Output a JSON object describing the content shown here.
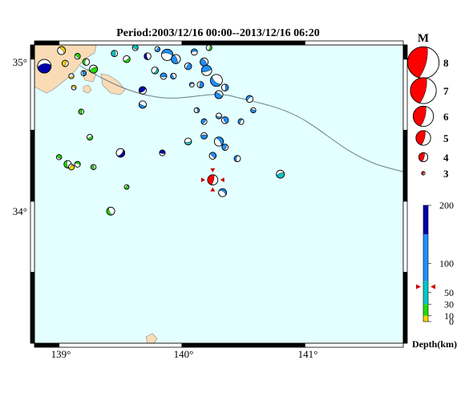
{
  "title": "Period:2003/12/16 00:00--2013/12/16 06:20",
  "map": {
    "lon_min": 138.8,
    "lon_max": 141.8,
    "lat_min": 33.0,
    "lat_max": 35.1,
    "lon_ticks": [
      "139°",
      "140°",
      "141°"
    ],
    "lat_ticks": [
      "35°",
      "34°"
    ],
    "sea_color": "#e4ffff",
    "land_color": "#f9dcb6"
  },
  "magnitude_legend": {
    "title": "M",
    "items": [
      {
        "label": "8",
        "mag": 8
      },
      {
        "label": "7",
        "mag": 7
      },
      {
        "label": "6",
        "mag": 6
      },
      {
        "label": "5",
        "mag": 5
      },
      {
        "label": "4",
        "mag": 4
      },
      {
        "label": "3",
        "mag": 3
      }
    ],
    "color": "#ff0000"
  },
  "depth_legend": {
    "title": "Depth(km)",
    "ticks": [
      "200",
      "100",
      "50",
      "30",
      "10",
      "0"
    ],
    "bands": [
      {
        "from": 0,
        "to": 10,
        "color": "#ffd400"
      },
      {
        "from": 10,
        "to": 30,
        "color": "#22dd00"
      },
      {
        "from": 30,
        "to": 70,
        "color": "#00c8c8"
      },
      {
        "from": 70,
        "to": 150,
        "color": "#1e90ff"
      },
      {
        "from": 150,
        "to": 200,
        "color": "#0000aa"
      }
    ],
    "marker_depth": 60
  },
  "latest_event": {
    "lon": 140.25,
    "lat": 34.15,
    "mag": 4.2,
    "depth": 60
  },
  "events": [
    {
      "lon": 138.88,
      "lat": 34.95,
      "mag": 4.8,
      "color": "#0000aa"
    },
    {
      "lon": 139.02,
      "lat": 35.06,
      "mag": 3.8,
      "color": "#ffd400"
    },
    {
      "lon": 139.05,
      "lat": 34.97,
      "mag": 3.5,
      "color": "#ffd400"
    },
    {
      "lon": 139.1,
      "lat": 34.88,
      "mag": 3.3,
      "color": "#ffd400"
    },
    {
      "lon": 139.15,
      "lat": 35.02,
      "mag": 3.4,
      "color": "#22dd00"
    },
    {
      "lon": 139.22,
      "lat": 34.98,
      "mag": 3.6,
      "color": "#22dd00"
    },
    {
      "lon": 139.28,
      "lat": 34.93,
      "mag": 3.8,
      "color": "#22dd00"
    },
    {
      "lon": 139.12,
      "lat": 34.8,
      "mag": 3.2,
      "color": "#ffd400"
    },
    {
      "lon": 139.45,
      "lat": 35.04,
      "mag": 3.5,
      "color": "#00c8c8"
    },
    {
      "lon": 139.55,
      "lat": 35.0,
      "mag": 3.6,
      "color": "#22dd00"
    },
    {
      "lon": 139.62,
      "lat": 35.08,
      "mag": 3.4,
      "color": "#00c8c8"
    },
    {
      "lon": 139.72,
      "lat": 35.02,
      "mag": 3.6,
      "color": "#0000aa"
    },
    {
      "lon": 139.8,
      "lat": 35.07,
      "mag": 3.3,
      "color": "#1e90ff"
    },
    {
      "lon": 139.88,
      "lat": 35.03,
      "mag": 4.4,
      "color": "#1e90ff"
    },
    {
      "lon": 139.95,
      "lat": 35.0,
      "mag": 4.0,
      "color": "#1e90ff"
    },
    {
      "lon": 139.78,
      "lat": 34.92,
      "mag": 3.6,
      "color": "#00c8c8"
    },
    {
      "lon": 139.85,
      "lat": 34.88,
      "mag": 3.5,
      "color": "#1e90ff"
    },
    {
      "lon": 139.93,
      "lat": 34.88,
      "mag": 3.4,
      "color": "#1e90ff"
    },
    {
      "lon": 140.05,
      "lat": 34.95,
      "mag": 3.6,
      "color": "#1e90ff"
    },
    {
      "lon": 140.1,
      "lat": 35.05,
      "mag": 3.5,
      "color": "#1e90ff"
    },
    {
      "lon": 140.18,
      "lat": 34.98,
      "mag": 3.8,
      "color": "#1e90ff"
    },
    {
      "lon": 140.22,
      "lat": 35.08,
      "mag": 3.4,
      "color": "#22dd00"
    },
    {
      "lon": 140.2,
      "lat": 34.92,
      "mag": 4.2,
      "color": "#1e90ff"
    },
    {
      "lon": 140.28,
      "lat": 34.85,
      "mag": 4.5,
      "color": "#1e90ff"
    },
    {
      "lon": 140.15,
      "lat": 34.82,
      "mag": 3.5,
      "color": "#1e90ff"
    },
    {
      "lon": 140.08,
      "lat": 34.82,
      "mag": 3.2,
      "color": "#1e90ff"
    },
    {
      "lon": 140.3,
      "lat": 34.75,
      "mag": 3.8,
      "color": "#1e90ff"
    },
    {
      "lon": 140.35,
      "lat": 34.8,
      "mag": 3.6,
      "color": "#1e90ff"
    },
    {
      "lon": 139.68,
      "lat": 34.78,
      "mag": 3.7,
      "color": "#0000aa"
    },
    {
      "lon": 139.68,
      "lat": 34.68,
      "mag": 3.7,
      "color": "#1e90ff"
    },
    {
      "lon": 139.2,
      "lat": 34.9,
      "mag": 3.3,
      "color": "#1e90ff"
    },
    {
      "lon": 140.55,
      "lat": 34.72,
      "mag": 3.6,
      "color": "#1e90ff"
    },
    {
      "lon": 140.58,
      "lat": 34.64,
      "mag": 3.3,
      "color": "#1e90ff"
    },
    {
      "lon": 140.12,
      "lat": 34.64,
      "mag": 3.3,
      "color": "#1e90ff"
    },
    {
      "lon": 140.18,
      "lat": 34.56,
      "mag": 3.4,
      "color": "#1e90ff"
    },
    {
      "lon": 140.3,
      "lat": 34.6,
      "mag": 3.4,
      "color": "#1e90ff"
    },
    {
      "lon": 140.35,
      "lat": 34.57,
      "mag": 3.6,
      "color": "#1e90ff"
    },
    {
      "lon": 140.48,
      "lat": 34.56,
      "mag": 3.4,
      "color": "#1e90ff"
    },
    {
      "lon": 140.18,
      "lat": 34.46,
      "mag": 3.5,
      "color": "#1e90ff"
    },
    {
      "lon": 140.3,
      "lat": 34.42,
      "mag": 4.0,
      "color": "#1e90ff"
    },
    {
      "lon": 140.35,
      "lat": 34.38,
      "mag": 3.5,
      "color": "#1e90ff"
    },
    {
      "lon": 140.05,
      "lat": 34.42,
      "mag": 3.6,
      "color": "#00c8c8"
    },
    {
      "lon": 140.25,
      "lat": 34.32,
      "mag": 3.6,
      "color": "#1e90ff"
    },
    {
      "lon": 140.45,
      "lat": 34.3,
      "mag": 3.5,
      "color": "#1e90ff"
    },
    {
      "lon": 140.8,
      "lat": 34.19,
      "mag": 3.8,
      "color": "#00c8c8"
    },
    {
      "lon": 140.33,
      "lat": 34.06,
      "mag": 3.8,
      "color": "#1e90ff"
    },
    {
      "lon": 139.18,
      "lat": 34.63,
      "mag": 3.3,
      "color": "#22dd00"
    },
    {
      "lon": 139.25,
      "lat": 34.45,
      "mag": 3.4,
      "color": "#22dd00"
    },
    {
      "lon": 139.0,
      "lat": 34.31,
      "mag": 3.3,
      "color": "#22dd00"
    },
    {
      "lon": 139.07,
      "lat": 34.26,
      "mag": 3.7,
      "color": "#22dd00"
    },
    {
      "lon": 139.1,
      "lat": 34.24,
      "mag": 3.4,
      "color": "#ffd400"
    },
    {
      "lon": 139.15,
      "lat": 34.26,
      "mag": 3.4,
      "color": "#22dd00"
    },
    {
      "lon": 139.28,
      "lat": 34.24,
      "mag": 3.3,
      "color": "#22dd00"
    },
    {
      "lon": 139.5,
      "lat": 34.34,
      "mag": 3.9,
      "color": "#0000aa"
    },
    {
      "lon": 139.84,
      "lat": 34.34,
      "mag": 3.4,
      "color": "#0000aa"
    },
    {
      "lon": 139.42,
      "lat": 33.93,
      "mag": 3.8,
      "color": "#22dd00"
    },
    {
      "lon": 139.55,
      "lat": 34.1,
      "mag": 3.2,
      "color": "#22dd00"
    }
  ]
}
